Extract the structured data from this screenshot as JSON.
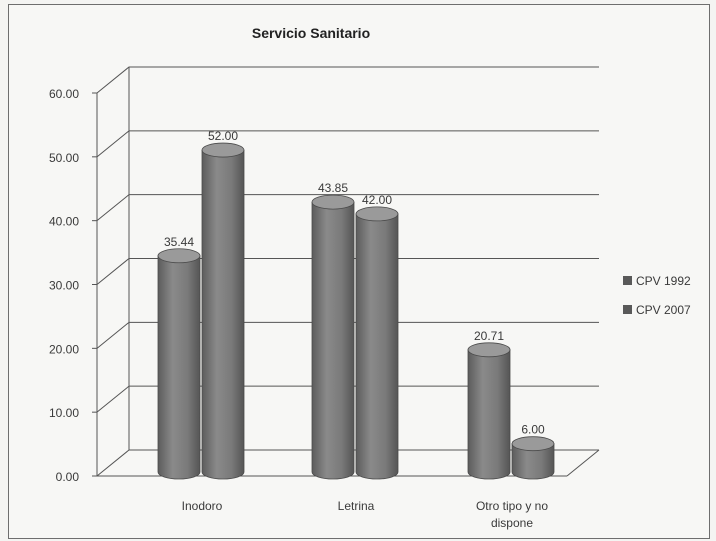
{
  "chart_data": {
    "type": "bar",
    "title": "Servicio Sanitario",
    "categories": [
      "Inodoro",
      "Letrina",
      "Otro tipo y no dispone"
    ],
    "category_lines": [
      [
        "Inodoro"
      ],
      [
        "Letrina"
      ],
      [
        "Otro tipo y no",
        "dispone"
      ]
    ],
    "series": [
      {
        "name": "CPV 1992",
        "values": [
          35.44,
          43.85,
          20.71
        ],
        "labels": [
          "35.44",
          "43.85",
          "20.71"
        ]
      },
      {
        "name": "CPV 2007",
        "values": [
          52.0,
          42.0,
          6.0
        ],
        "labels": [
          "52.00",
          "42.00",
          "6.00"
        ]
      }
    ],
    "ylim": [
      0,
      60
    ],
    "yticks": [
      0,
      10,
      20,
      30,
      40,
      50,
      60
    ],
    "ytick_labels": [
      "0.00",
      "10.00",
      "20.00",
      "30.00",
      "40.00",
      "50.00",
      "60.00"
    ],
    "grid": true,
    "legend_position": "right",
    "style": "3d-cylinder",
    "colors": {
      "bar": "#7a7a7a",
      "bar_dark": "#595959",
      "bar_light": "#9a9a9a",
      "grid": "#555555",
      "wall": "#f7f7f5"
    }
  }
}
